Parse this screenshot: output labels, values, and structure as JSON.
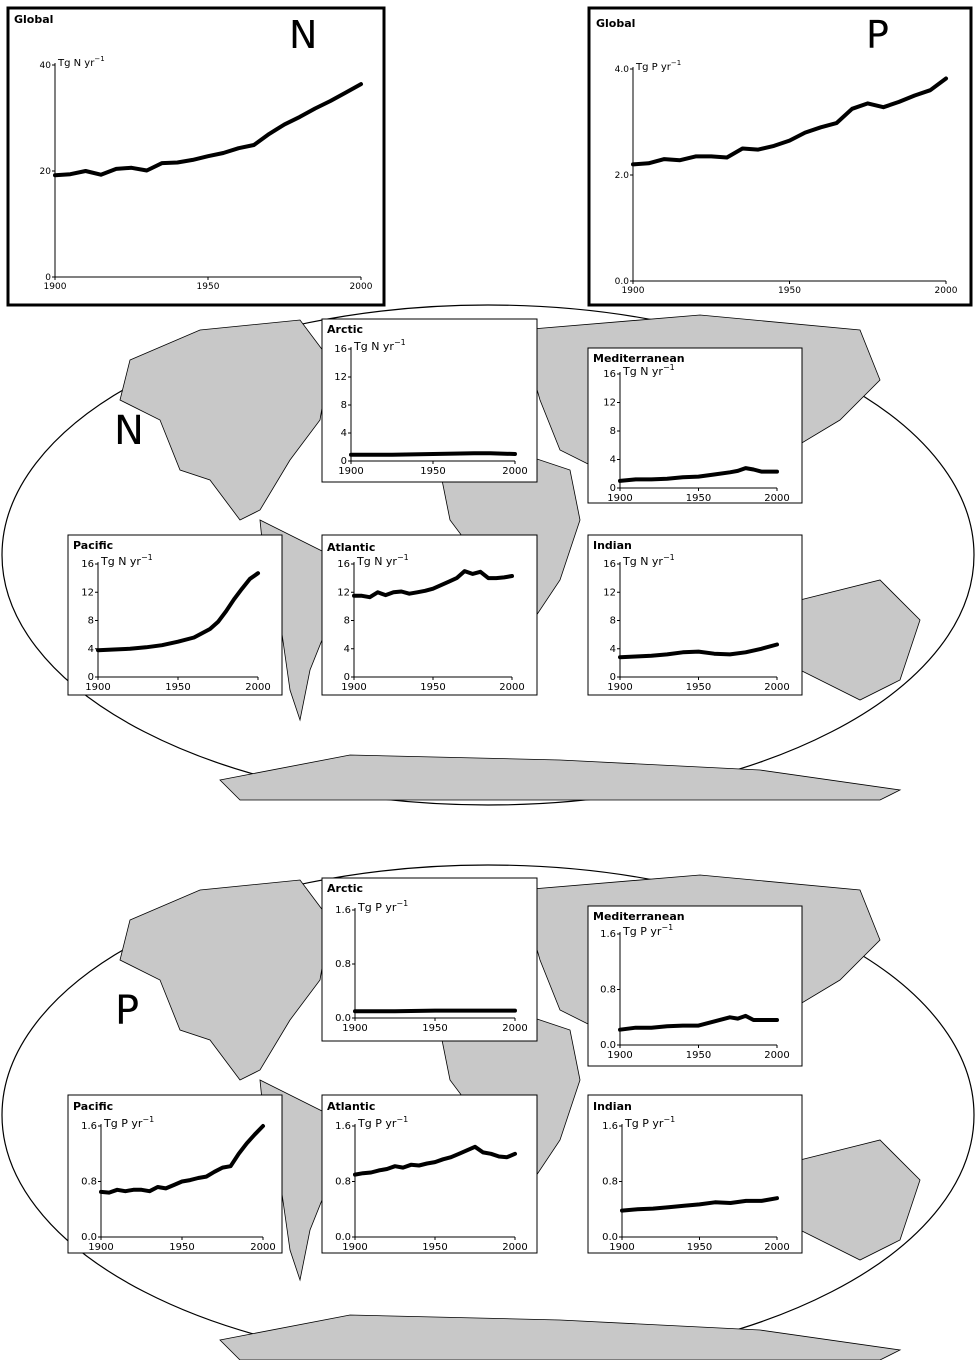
{
  "big_letters": {
    "map_n": "N",
    "map_p": "P"
  },
  "chart_data": [
    {
      "id": "global-n",
      "type": "line",
      "title": "Global",
      "corner_label": "N",
      "ylabel": "Tg N yr",
      "ylabel_sup": "−1",
      "xlim": [
        1900,
        2000
      ],
      "ylim": [
        0,
        40
      ],
      "xticks": [
        "1900",
        "1950",
        "2000"
      ],
      "yticks": [
        "0",
        "20",
        "40"
      ],
      "x": [
        1900,
        1905,
        1910,
        1915,
        1920,
        1925,
        1930,
        1935,
        1940,
        1945,
        1950,
        1955,
        1960,
        1965,
        1970,
        1975,
        1980,
        1985,
        1990,
        1995,
        2000
      ],
      "values": [
        19.2,
        19.4,
        20.0,
        19.3,
        20.4,
        20.6,
        20.1,
        21.5,
        21.6,
        22.1,
        22.8,
        23.4,
        24.3,
        24.9,
        27.0,
        28.8,
        30.2,
        31.8,
        33.2,
        34.8,
        36.4
      ]
    },
    {
      "id": "global-p",
      "type": "line",
      "title": "Global",
      "corner_label": "P",
      "ylabel": "Tg P yr",
      "ylabel_sup": "−1",
      "xlim": [
        1900,
        2000
      ],
      "ylim": [
        0,
        4.0
      ],
      "xticks": [
        "1900",
        "1950",
        "2000"
      ],
      "yticks": [
        "0.0",
        "2.0",
        "4.0"
      ],
      "x": [
        1900,
        1905,
        1910,
        1915,
        1920,
        1925,
        1930,
        1935,
        1940,
        1945,
        1950,
        1955,
        1960,
        1965,
        1970,
        1975,
        1980,
        1985,
        1990,
        1995,
        2000
      ],
      "values": [
        2.2,
        2.22,
        2.3,
        2.28,
        2.35,
        2.35,
        2.33,
        2.5,
        2.48,
        2.55,
        2.65,
        2.8,
        2.9,
        2.98,
        3.25,
        3.35,
        3.28,
        3.38,
        3.5,
        3.6,
        3.82
      ]
    },
    {
      "id": "n-arctic",
      "type": "line",
      "title": "Arctic",
      "ylabel": "Tg N yr",
      "ylabel_sup": "−1",
      "xlim": [
        1900,
        2000
      ],
      "ylim": [
        0,
        16
      ],
      "xticks": [
        "1900",
        "1950",
        "2000"
      ],
      "yticks": [
        "0",
        "4",
        "8",
        "12",
        "16"
      ],
      "x": [
        1900,
        1925,
        1950,
        1975,
        1985,
        2000
      ],
      "values": [
        0.9,
        0.9,
        1.0,
        1.1,
        1.1,
        1.0
      ]
    },
    {
      "id": "n-mediterranean",
      "type": "line",
      "title": "Mediterranean",
      "ylabel": "Tg N yr",
      "ylabel_sup": "−1",
      "xlim": [
        1900,
        2000
      ],
      "ylim": [
        0,
        16
      ],
      "xticks": [
        "1900",
        "1950",
        "2000"
      ],
      "yticks": [
        "0",
        "4",
        "8",
        "12",
        "16"
      ],
      "x": [
        1900,
        1910,
        1920,
        1930,
        1940,
        1950,
        1960,
        1970,
        1975,
        1980,
        1985,
        1990,
        2000
      ],
      "values": [
        1.0,
        1.2,
        1.2,
        1.3,
        1.5,
        1.6,
        1.9,
        2.2,
        2.4,
        2.8,
        2.6,
        2.3,
        2.3
      ]
    },
    {
      "id": "n-pacific",
      "type": "line",
      "title": "Pacific",
      "ylabel": "Tg N yr",
      "ylabel_sup": "−1",
      "xlim": [
        1900,
        2000
      ],
      "ylim": [
        0,
        16
      ],
      "xticks": [
        "1900",
        "1950",
        "2000"
      ],
      "yticks": [
        "0",
        "4",
        "8",
        "12",
        "16"
      ],
      "x": [
        1900,
        1910,
        1920,
        1930,
        1940,
        1950,
        1960,
        1970,
        1975,
        1980,
        1985,
        1990,
        1995,
        2000
      ],
      "values": [
        3.8,
        3.9,
        4.0,
        4.2,
        4.5,
        5.0,
        5.6,
        6.8,
        7.8,
        9.3,
        11.0,
        12.5,
        13.9,
        14.7
      ]
    },
    {
      "id": "n-atlantic",
      "type": "line",
      "title": "Atlantic",
      "ylabel": "Tg N yr",
      "ylabel_sup": "−1",
      "xlim": [
        1900,
        2000
      ],
      "ylim": [
        0,
        16
      ],
      "xticks": [
        "1900",
        "1950",
        "2000"
      ],
      "yticks": [
        "0",
        "4",
        "8",
        "12",
        "16"
      ],
      "x": [
        1900,
        1905,
        1910,
        1915,
        1920,
        1925,
        1930,
        1935,
        1940,
        1945,
        1950,
        1955,
        1960,
        1965,
        1970,
        1975,
        1980,
        1985,
        1990,
        1995,
        2000
      ],
      "values": [
        11.5,
        11.5,
        11.3,
        12.0,
        11.6,
        12.0,
        12.1,
        11.8,
        12.0,
        12.2,
        12.5,
        13.0,
        13.5,
        14.0,
        15.0,
        14.6,
        14.9,
        14.0,
        14.0,
        14.1,
        14.3
      ]
    },
    {
      "id": "n-indian",
      "type": "line",
      "title": "Indian",
      "ylabel": "Tg N yr",
      "ylabel_sup": "−1",
      "xlim": [
        1900,
        2000
      ],
      "ylim": [
        0,
        16
      ],
      "xticks": [
        "1900",
        "1950",
        "2000"
      ],
      "yticks": [
        "0",
        "4",
        "8",
        "12",
        "16"
      ],
      "x": [
        1900,
        1910,
        1920,
        1930,
        1940,
        1950,
        1960,
        1970,
        1980,
        1990,
        2000
      ],
      "values": [
        2.8,
        2.9,
        3.0,
        3.2,
        3.5,
        3.6,
        3.3,
        3.2,
        3.5,
        4.0,
        4.6
      ]
    },
    {
      "id": "p-arctic",
      "type": "line",
      "title": "Arctic",
      "ylabel": "Tg P yr",
      "ylabel_sup": "−1",
      "xlim": [
        1900,
        2000
      ],
      "ylim": [
        0,
        1.6
      ],
      "xticks": [
        "1900",
        "1950",
        "2000"
      ],
      "yticks": [
        "0.0",
        "0.8",
        "1.6"
      ],
      "x": [
        1900,
        1925,
        1950,
        1975,
        2000
      ],
      "values": [
        0.1,
        0.1,
        0.11,
        0.11,
        0.11
      ]
    },
    {
      "id": "p-mediterranean",
      "type": "line",
      "title": "Mediterranean",
      "ylabel": "Tg P yr",
      "ylabel_sup": "−1",
      "xlim": [
        1900,
        2000
      ],
      "ylim": [
        0,
        1.6
      ],
      "xticks": [
        "1900",
        "1950",
        "2000"
      ],
      "yticks": [
        "0.0",
        "0.8",
        "1.6"
      ],
      "x": [
        1900,
        1910,
        1920,
        1930,
        1940,
        1950,
        1960,
        1970,
        1975,
        1980,
        1985,
        1990,
        2000
      ],
      "values": [
        0.22,
        0.25,
        0.25,
        0.27,
        0.28,
        0.28,
        0.34,
        0.4,
        0.38,
        0.42,
        0.36,
        0.36,
        0.36
      ]
    },
    {
      "id": "p-pacific",
      "type": "line",
      "title": "Pacific",
      "ylabel": "Tg P yr",
      "ylabel_sup": "−1",
      "xlim": [
        1900,
        2000
      ],
      "ylim": [
        0,
        1.6
      ],
      "xticks": [
        "1900",
        "1950",
        "2000"
      ],
      "yticks": [
        "0.0",
        "0.8",
        "1.6"
      ],
      "x": [
        1900,
        1905,
        1910,
        1915,
        1920,
        1925,
        1930,
        1935,
        1940,
        1945,
        1950,
        1955,
        1960,
        1965,
        1970,
        1975,
        1980,
        1985,
        1990,
        1995,
        2000
      ],
      "values": [
        0.65,
        0.64,
        0.68,
        0.66,
        0.68,
        0.68,
        0.66,
        0.72,
        0.7,
        0.75,
        0.8,
        0.82,
        0.85,
        0.87,
        0.94,
        1.0,
        1.02,
        1.2,
        1.35,
        1.48,
        1.6
      ]
    },
    {
      "id": "p-atlantic",
      "type": "line",
      "title": "Atlantic",
      "ylabel": "Tg P yr",
      "ylabel_sup": "−1",
      "xlim": [
        1900,
        2000
      ],
      "ylim": [
        0,
        1.6
      ],
      "xticks": [
        "1900",
        "1950",
        "2000"
      ],
      "yticks": [
        "0.0",
        "0.8",
        "1.6"
      ],
      "x": [
        1900,
        1905,
        1910,
        1915,
        1920,
        1925,
        1930,
        1935,
        1940,
        1945,
        1950,
        1955,
        1960,
        1965,
        1970,
        1975,
        1980,
        1985,
        1990,
        1995,
        2000
      ],
      "values": [
        0.9,
        0.92,
        0.93,
        0.96,
        0.98,
        1.02,
        1.0,
        1.04,
        1.03,
        1.06,
        1.08,
        1.12,
        1.15,
        1.2,
        1.25,
        1.3,
        1.22,
        1.2,
        1.16,
        1.15,
        1.2
      ]
    },
    {
      "id": "p-indian",
      "type": "line",
      "title": "Indian",
      "ylabel": "Tg P yr",
      "ylabel_sup": "−1",
      "xlim": [
        1900,
        2000
      ],
      "ylim": [
        0,
        1.6
      ],
      "xticks": [
        "1900",
        "1950",
        "2000"
      ],
      "yticks": [
        "0.0",
        "0.8",
        "1.6"
      ],
      "x": [
        1900,
        1910,
        1920,
        1930,
        1940,
        1950,
        1960,
        1970,
        1980,
        1990,
        2000
      ],
      "values": [
        0.38,
        0.4,
        0.41,
        0.43,
        0.45,
        0.47,
        0.5,
        0.49,
        0.52,
        0.52,
        0.56
      ]
    }
  ]
}
